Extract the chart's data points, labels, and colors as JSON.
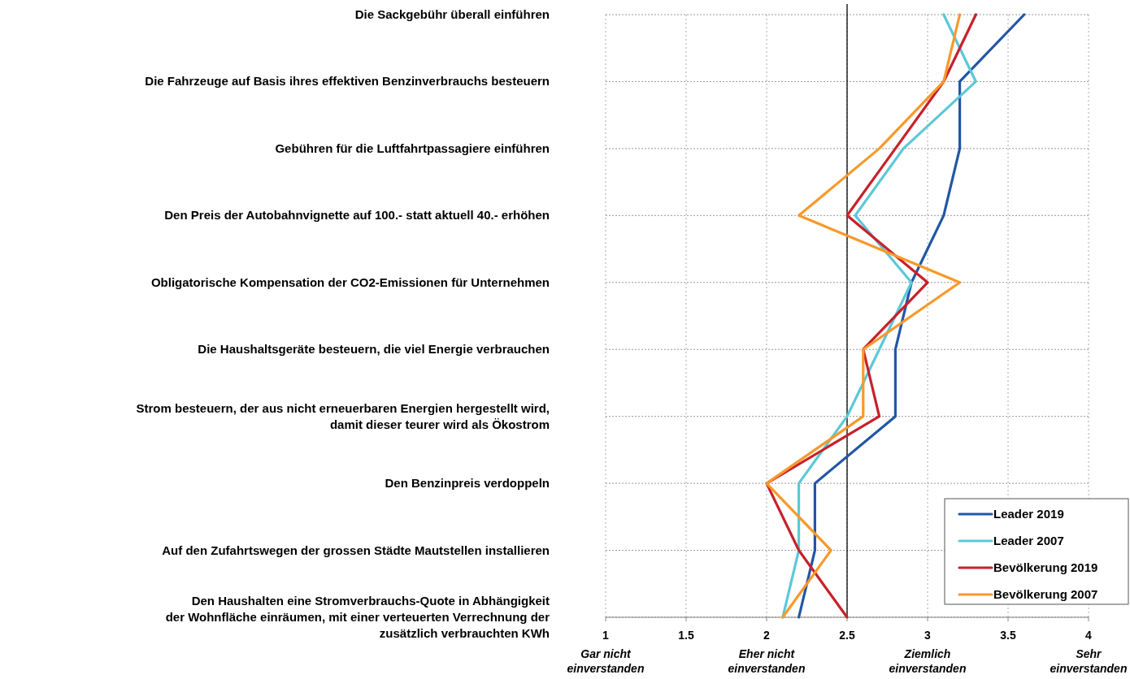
{
  "chart_data": {
    "type": "line",
    "orientation": "horizontal",
    "categories": [
      "Die Sackgebühr überall einführen",
      "Die Fahrzeuge auf Basis ihres effektiven Benzinverbrauchs besteuern",
      "Gebühren für die Luftfahrtpassagiere einführen",
      "Den Preis der Autobahnvignette auf 100.- statt aktuell 40.- erhöhen",
      "Obligatorische Kompensation der CO2-Emissionen für Unternehmen",
      "Die Haushaltsgeräte besteuern, die viel Energie verbrauchen",
      "Strom besteuern, der aus nicht erneuerbaren Energien hergestellt wird,\ndamit dieser teurer wird als Ökostrom",
      "Den Benzinpreis verdoppeln",
      "Auf den Zufahrtswegen der grossen Städte Mautstellen installieren",
      "Den Haushalten eine Stromverbrauchs-Quote in Abhängigkeit\nder Wohnfläche einräumen, mit einer verteuerten Verrechnung der\nzusätzlich verbrauchten KWh"
    ],
    "series": [
      {
        "name": "Leader 2019",
        "color": "#2256a6",
        "values": [
          3.6,
          3.2,
          3.2,
          3.1,
          2.9,
          2.8,
          2.8,
          2.3,
          2.3,
          2.2
        ]
      },
      {
        "name": "Leader 2007",
        "color": "#5cc8d7",
        "values": [
          3.1,
          3.3,
          2.85,
          2.55,
          2.9,
          2.7,
          2.5,
          2.2,
          2.2,
          2.1
        ]
      },
      {
        "name": "Bevölkerung 2019",
        "color": "#c8202a",
        "values": [
          3.3,
          3.1,
          2.8,
          2.5,
          3.0,
          2.6,
          2.7,
          2.0,
          2.2,
          2.5
        ]
      },
      {
        "name": "Bevölkerung 2007",
        "color": "#f7992a",
        "values": [
          3.2,
          3.1,
          2.7,
          2.2,
          3.2,
          2.6,
          2.6,
          2.0,
          2.4,
          2.1
        ]
      }
    ],
    "xlim": [
      1,
      4
    ],
    "xticks": [
      {
        "value": 1,
        "label": "1\nGar nicht\neinverstanden"
      },
      1.5,
      {
        "value": 2,
        "label": "2\nEher nicht\neinverstanden"
      },
      2.5,
      {
        "value": 3,
        "label": "3\nZiemlich\neinverstanden"
      },
      3.5,
      {
        "value": 4,
        "label": "4\nSehr\neinverstanden"
      }
    ],
    "ref_lines": [
      {
        "axis": "x",
        "value": 2.5,
        "color": "#000000"
      }
    ],
    "grid": true,
    "legend": "bottom right",
    "line_style": "solid",
    "marker": "none"
  }
}
